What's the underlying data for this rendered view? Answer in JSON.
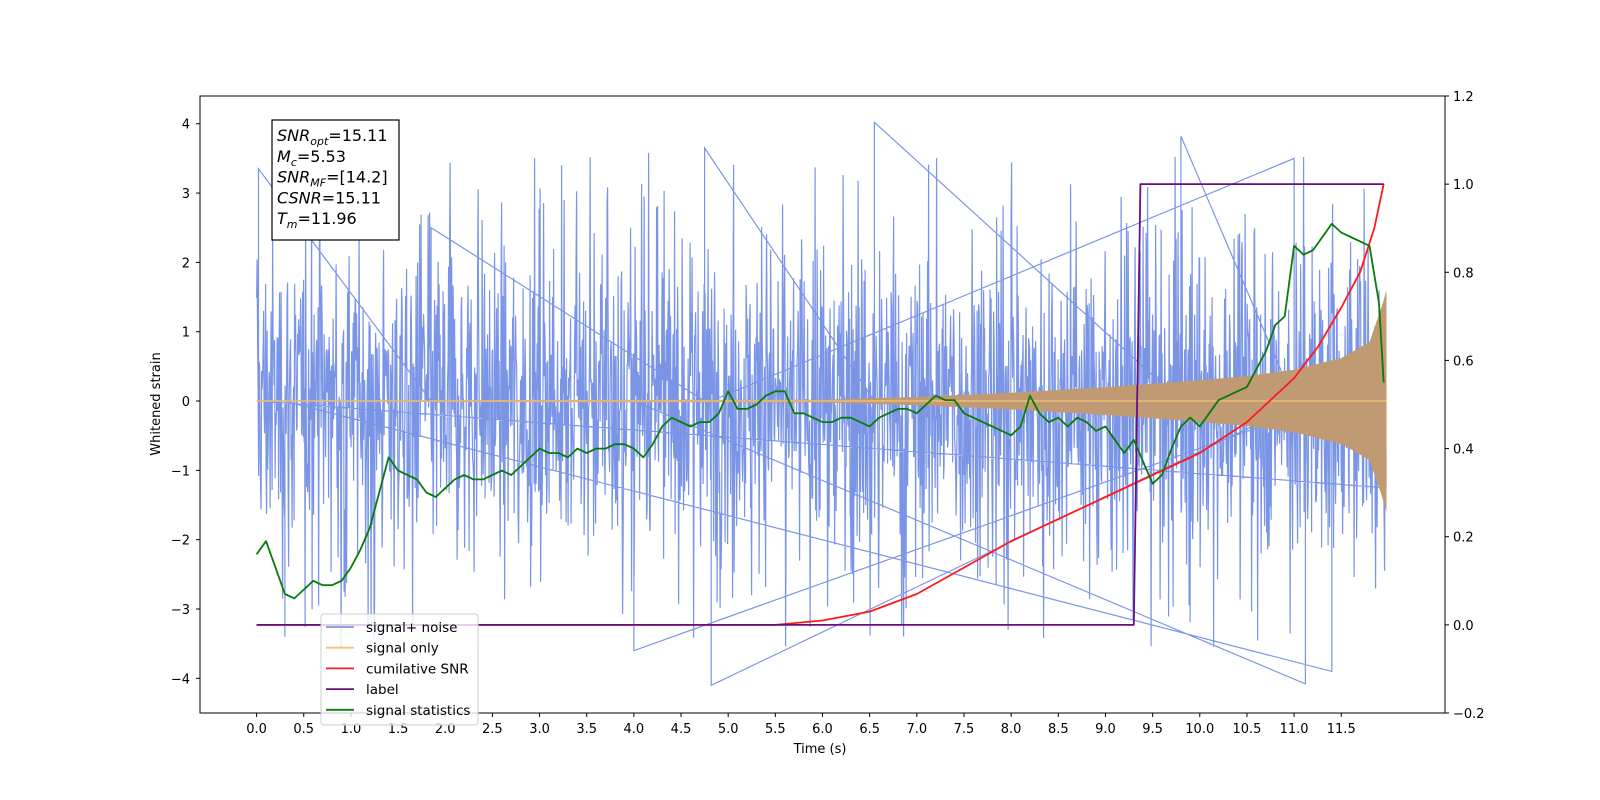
{
  "chart_data": {
    "type": "line",
    "xlabel": "Time (s)",
    "ylabel": "Whitened strain",
    "xlim": [
      -0.6,
      12.6
    ],
    "ylim": [
      -4.5,
      4.4
    ],
    "y2lim": [
      -0.2,
      1.2
    ],
    "x_ticks": [
      "0.0",
      "0.5",
      "1.0",
      "1.5",
      "2.0",
      "2.5",
      "3.0",
      "3.5",
      "4.0",
      "4.5",
      "5.0",
      "5.5",
      "6.0",
      "6.5",
      "7.0",
      "7.5",
      "8.0",
      "8.5",
      "9.0",
      "9.5",
      "10.0",
      "10.5",
      "11.0",
      "11.5"
    ],
    "y_ticks": [
      "4",
      "3",
      "2",
      "1",
      "0",
      "−1",
      "−2",
      "−3",
      "−4"
    ],
    "y2_ticks": [
      "1.2",
      "1.0",
      "0.8",
      "0.6",
      "0.4",
      "0.2",
      "0.0",
      "−0.2"
    ],
    "annotation": [
      {
        "base": "SNR",
        "sub": "opt",
        "value": "=15.11"
      },
      {
        "base": "M",
        "sub": "c",
        "value": "=5.53"
      },
      {
        "base": "SNR",
        "sub": "MF",
        "value": "=[14.2]"
      },
      {
        "base": "CSNR",
        "sub": "",
        "value": "=15.11"
      },
      {
        "base": "T",
        "sub": "m",
        "value": "=11.96"
      }
    ],
    "legend": {
      "placement": "lower-left",
      "entries": [
        {
          "label": "signal+ noise",
          "color": "#7b95e6"
        },
        {
          "label": "signal only",
          "color": "#f5c27a"
        },
        {
          "label": "cumilative SNR",
          "color": "#ff1a1a"
        },
        {
          "label": "label",
          "color": "#6a0d83"
        },
        {
          "label": "signal statistics",
          "color": "#0a7a0a"
        }
      ]
    },
    "series": [
      {
        "name": "signal+ noise",
        "axis": "left",
        "color": "#7b95e6",
        "x_range": [
          0.0,
          11.98
        ],
        "amplitude_envelope": {
          "typical": 2.2,
          "peak_max": 4.05,
          "peak_min": -4.1
        }
      },
      {
        "name": "signal only",
        "axis": "left",
        "color": "#f5c27a",
        "chirp_envelope": {
          "t": [
            0.0,
            6.0,
            7.0,
            8.0,
            9.0,
            10.0,
            10.5,
            11.0,
            11.5,
            11.8,
            11.95,
            11.98
          ],
          "amp": [
            0.01,
            0.02,
            0.06,
            0.12,
            0.2,
            0.3,
            0.36,
            0.45,
            0.62,
            0.85,
            1.45,
            1.6
          ]
        }
      },
      {
        "name": "cumilative SNR",
        "axis": "right",
        "color": "#ff1a1a",
        "x": [
          0.0,
          5.5,
          6.0,
          6.5,
          7.0,
          7.5,
          8.0,
          8.5,
          9.0,
          9.5,
          10.0,
          10.5,
          11.0,
          11.25,
          11.5,
          11.7,
          11.85,
          11.95
        ],
        "y": [
          0.0,
          0.0,
          0.01,
          0.03,
          0.07,
          0.13,
          0.19,
          0.24,
          0.29,
          0.34,
          0.39,
          0.46,
          0.56,
          0.63,
          0.72,
          0.8,
          0.9,
          1.0
        ]
      },
      {
        "name": "label",
        "axis": "right",
        "color": "#6a0d83",
        "x": [
          0.0,
          9.3,
          9.37,
          11.95
        ],
        "y": [
          0.0,
          0.0,
          1.0,
          1.0
        ]
      },
      {
        "name": "signal statistics",
        "axis": "right",
        "color": "#0a7a0a",
        "x": [
          0.0,
          0.1,
          0.2,
          0.3,
          0.4,
          0.5,
          0.6,
          0.7,
          0.8,
          0.9,
          1.0,
          1.1,
          1.2,
          1.3,
          1.4,
          1.5,
          1.6,
          1.7,
          1.8,
          1.9,
          2.0,
          2.1,
          2.2,
          2.3,
          2.4,
          2.5,
          2.6,
          2.7,
          2.8,
          2.9,
          3.0,
          3.1,
          3.2,
          3.3,
          3.4,
          3.5,
          3.6,
          3.7,
          3.8,
          3.9,
          4.0,
          4.1,
          4.2,
          4.3,
          4.4,
          4.5,
          4.6,
          4.7,
          4.8,
          4.9,
          5.0,
          5.1,
          5.2,
          5.3,
          5.4,
          5.5,
          5.6,
          5.7,
          5.8,
          5.9,
          6.0,
          6.1,
          6.2,
          6.3,
          6.4,
          6.5,
          6.6,
          6.7,
          6.8,
          6.9,
          7.0,
          7.1,
          7.2,
          7.3,
          7.4,
          7.5,
          7.6,
          7.7,
          7.8,
          7.9,
          8.0,
          8.1,
          8.2,
          8.3,
          8.4,
          8.5,
          8.6,
          8.7,
          8.8,
          8.9,
          9.0,
          9.1,
          9.2,
          9.3,
          9.4,
          9.5,
          9.6,
          9.7,
          9.8,
          9.9,
          10.0,
          10.1,
          10.2,
          10.3,
          10.4,
          10.5,
          10.6,
          10.7,
          10.8,
          10.9,
          11.0,
          11.1,
          11.2,
          11.3,
          11.4,
          11.5,
          11.6,
          11.7,
          11.8,
          11.9,
          11.95
        ],
        "y": [
          0.16,
          0.19,
          0.13,
          0.07,
          0.06,
          0.08,
          0.1,
          0.09,
          0.09,
          0.1,
          0.13,
          0.17,
          0.22,
          0.3,
          0.38,
          0.35,
          0.34,
          0.33,
          0.3,
          0.29,
          0.31,
          0.33,
          0.34,
          0.33,
          0.33,
          0.34,
          0.35,
          0.34,
          0.36,
          0.38,
          0.4,
          0.39,
          0.39,
          0.38,
          0.4,
          0.39,
          0.4,
          0.4,
          0.41,
          0.41,
          0.4,
          0.38,
          0.41,
          0.45,
          0.47,
          0.46,
          0.45,
          0.46,
          0.46,
          0.48,
          0.53,
          0.49,
          0.49,
          0.5,
          0.52,
          0.53,
          0.53,
          0.48,
          0.48,
          0.47,
          0.46,
          0.46,
          0.47,
          0.47,
          0.46,
          0.45,
          0.47,
          0.48,
          0.49,
          0.49,
          0.48,
          0.5,
          0.52,
          0.51,
          0.51,
          0.48,
          0.47,
          0.46,
          0.45,
          0.44,
          0.43,
          0.45,
          0.52,
          0.48,
          0.46,
          0.47,
          0.45,
          0.47,
          0.46,
          0.44,
          0.45,
          0.42,
          0.39,
          0.42,
          0.37,
          0.32,
          0.34,
          0.4,
          0.45,
          0.47,
          0.45,
          0.48,
          0.51,
          0.52,
          0.53,
          0.54,
          0.58,
          0.62,
          0.68,
          0.7,
          0.86,
          0.84,
          0.85,
          0.88,
          0.91,
          0.89,
          0.88,
          0.87,
          0.86,
          0.73,
          0.55
        ]
      }
    ]
  }
}
